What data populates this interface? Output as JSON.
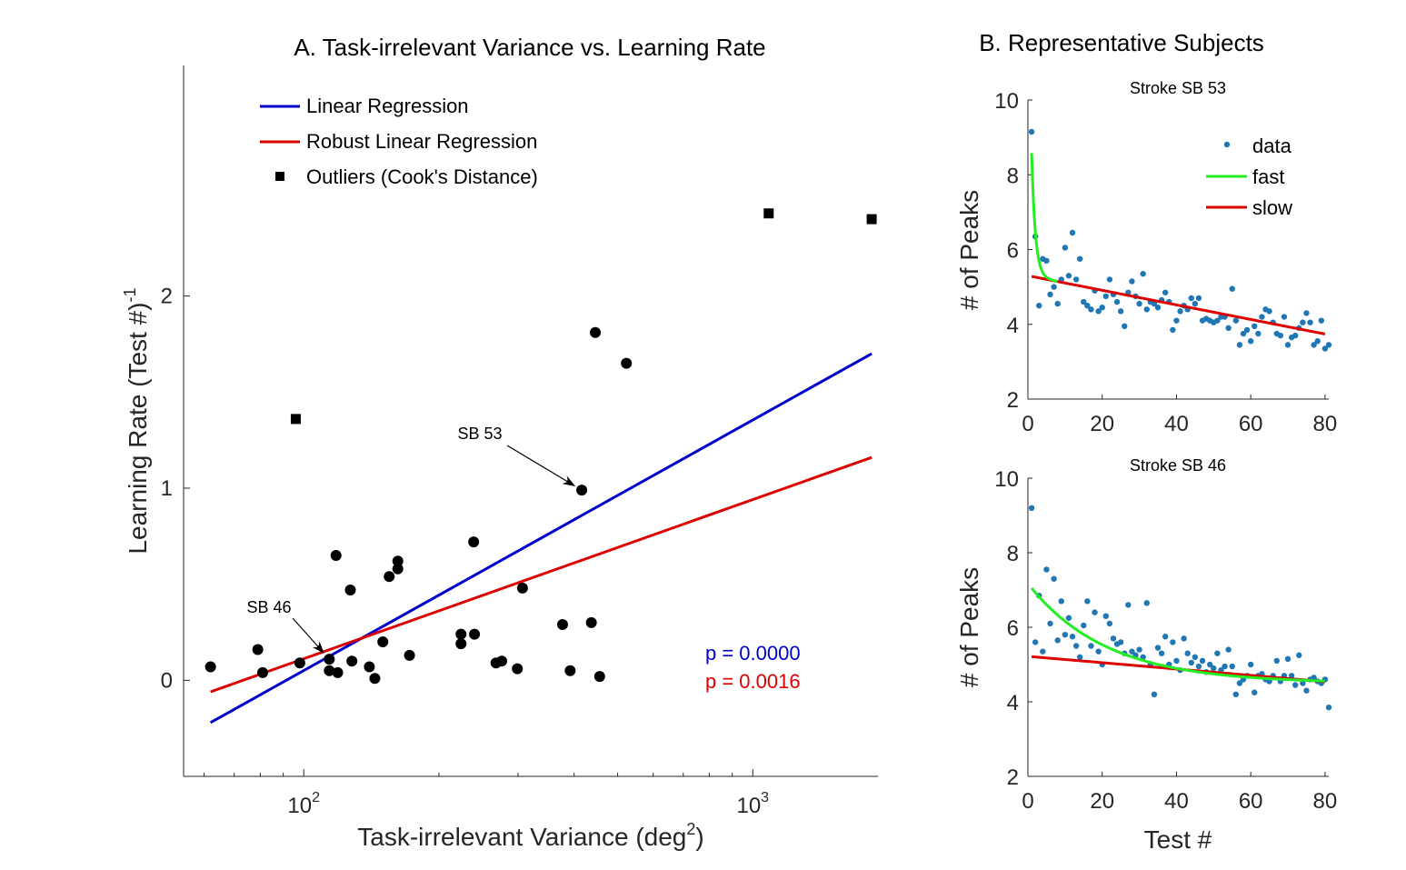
{
  "chart_data": [
    {
      "id": "A",
      "type": "scatter",
      "title": "A. Task-irrelevant Variance vs. Learning Rate",
      "xlabel": "Task-irrelevant Variance (deg",
      "xlabel_sup": "2",
      "xlabel_end": ")",
      "ylabel": "Learning Rate (Test #)",
      "ylabel_sup": "-1",
      "xscale": "log",
      "xlim": [
        54,
        1900
      ],
      "ylim": [
        -0.5,
        3.2
      ],
      "xticks": [
        {
          "value": 100,
          "base": "10",
          "exp": "2"
        },
        {
          "value": 1000,
          "base": "10",
          "exp": "3"
        }
      ],
      "yticks": [
        {
          "value": 0,
          "label": "0"
        },
        {
          "value": 1,
          "label": "1"
        },
        {
          "value": 2,
          "label": "2"
        }
      ],
      "legend": {
        "position": "top-left",
        "entries": [
          {
            "label": "Linear Regression",
            "color": "#0000cc",
            "kind": "line"
          },
          {
            "label": "Robust Linear Regression",
            "color": "#dd0000",
            "kind": "line"
          },
          {
            "label": "Outliers (Cook's Distance)",
            "color": "#000000",
            "kind": "square"
          }
        ]
      },
      "points": [
        {
          "x": 62,
          "y": 0.07
        },
        {
          "x": 79,
          "y": 0.16
        },
        {
          "x": 81,
          "y": 0.04
        },
        {
          "x": 98,
          "y": 0.09
        },
        {
          "x": 114,
          "y": 0.05
        },
        {
          "x": 114,
          "y": 0.11
        },
        {
          "x": 118,
          "y": 0.65
        },
        {
          "x": 119,
          "y": 0.04
        },
        {
          "x": 127,
          "y": 0.47
        },
        {
          "x": 128,
          "y": 0.1
        },
        {
          "x": 140,
          "y": 0.07
        },
        {
          "x": 144,
          "y": 0.01
        },
        {
          "x": 150,
          "y": 0.2
        },
        {
          "x": 155,
          "y": 0.54
        },
        {
          "x": 162,
          "y": 0.58
        },
        {
          "x": 162,
          "y": 0.62
        },
        {
          "x": 172,
          "y": 0.13
        },
        {
          "x": 224,
          "y": 0.24
        },
        {
          "x": 224,
          "y": 0.19
        },
        {
          "x": 239,
          "y": 0.72
        },
        {
          "x": 240,
          "y": 0.24
        },
        {
          "x": 268,
          "y": 0.09
        },
        {
          "x": 276,
          "y": 0.1
        },
        {
          "x": 299,
          "y": 0.06
        },
        {
          "x": 307,
          "y": 0.48
        },
        {
          "x": 377,
          "y": 0.29
        },
        {
          "x": 392,
          "y": 0.05
        },
        {
          "x": 416,
          "y": 0.99
        },
        {
          "x": 437,
          "y": 0.3
        },
        {
          "x": 446,
          "y": 1.81
        },
        {
          "x": 456,
          "y": 0.02
        },
        {
          "x": 523,
          "y": 1.65
        }
      ],
      "outliers": [
        {
          "x": 96,
          "y": 1.36
        },
        {
          "x": 1085,
          "y": 2.43
        },
        {
          "x": 1840,
          "y": 2.4
        }
      ],
      "lines": [
        {
          "name": "Linear Regression",
          "color": "#0000cc",
          "x": [
            62,
            1840
          ],
          "y": [
            -0.22,
            1.7
          ]
        },
        {
          "name": "Robust Linear Regression",
          "color": "#dd0000",
          "x": [
            62,
            1840
          ],
          "y": [
            -0.06,
            1.16
          ]
        }
      ],
      "annotations": [
        {
          "text": "SB 53",
          "target": {
            "x": 416,
            "y": 0.99
          }
        },
        {
          "text": "SB 46",
          "target": {
            "x": 114,
            "y": 0.11
          }
        }
      ],
      "pvalues": [
        {
          "text": "p = 0.0000",
          "color": "#0000cc"
        },
        {
          "text": "p = 0.0016",
          "color": "#dd0000"
        }
      ]
    },
    {
      "id": "B1",
      "type": "scatter",
      "title": "Stroke SB 53",
      "panel_title": "B. Representative Subjects",
      "ylabel": "# of Peaks",
      "xlabel": "",
      "xlim": [
        0,
        81
      ],
      "ylim": [
        2,
        10
      ],
      "xticks": [
        0,
        20,
        40,
        60,
        80
      ],
      "yticks": [
        2,
        4,
        6,
        8,
        10
      ],
      "legend": {
        "position": "top-right",
        "entries": [
          {
            "label": "data",
            "color": "#1f77b4",
            "kind": "dot"
          },
          {
            "label": "fast",
            "color": "#22ee22",
            "kind": "line"
          },
          {
            "label": "slow",
            "color": "#dd0000",
            "kind": "line"
          }
        ]
      },
      "data": [
        9.15,
        6.35,
        4.5,
        5.75,
        5.7,
        4.8,
        5.0,
        4.55,
        5.2,
        6.05,
        5.3,
        6.45,
        5.2,
        5.75,
        4.6,
        4.5,
        4.4,
        4.9,
        4.35,
        4.45,
        4.75,
        5.2,
        4.8,
        4.6,
        4.35,
        3.95,
        4.85,
        5.15,
        4.75,
        4.55,
        5.35,
        4.4,
        4.6,
        4.55,
        4.45,
        4.65,
        4.85,
        4.6,
        3.85,
        4.1,
        4.35,
        4.5,
        4.4,
        4.7,
        4.55,
        4.7,
        4.1,
        4.15,
        4.1,
        4.05,
        4.1,
        4.2,
        4.2,
        3.9,
        4.95,
        4.1,
        3.45,
        3.75,
        3.85,
        3.55,
        3.95,
        3.75,
        4.2,
        4.4,
        4.35,
        4.05,
        3.75,
        3.7,
        4.2,
        3.45,
        3.65,
        3.7,
        3.9,
        4.05,
        4.3,
        4.05,
        3.45,
        3.55,
        4.1,
        3.35,
        3.45
      ],
      "fit_fast": {
        "a": 3.3,
        "tau": 1.0,
        "c": 5.3,
        "b": 0.0195,
        "color": "#22ee22",
        "x_end": 8
      },
      "fit_slow": {
        "intercept": 5.3,
        "slope": -0.0195,
        "color": "#dd0000"
      }
    },
    {
      "id": "B2",
      "type": "scatter",
      "title": "Stroke SB 46",
      "ylabel": "# of Peaks",
      "xlabel": "Test #",
      "xlim": [
        0,
        81
      ],
      "ylim": [
        2,
        10
      ],
      "xticks": [
        0,
        20,
        40,
        60,
        80
      ],
      "yticks": [
        2,
        4,
        6,
        8,
        10
      ],
      "data": [
        9.2,
        5.6,
        6.85,
        5.35,
        7.55,
        6.1,
        7.3,
        5.65,
        6.7,
        5.8,
        6.25,
        5.75,
        5.5,
        5.2,
        6.05,
        6.7,
        5.5,
        6.4,
        5.35,
        5.0,
        6.3,
        6.1,
        5.7,
        5.55,
        5.6,
        5.3,
        6.6,
        5.35,
        5.25,
        5.4,
        5.2,
        6.65,
        5.0,
        4.2,
        5.45,
        5.3,
        5.75,
        5.0,
        5.6,
        5.1,
        4.85,
        5.7,
        5.3,
        5.05,
        5.2,
        4.95,
        5.1,
        4.8,
        5.0,
        4.9,
        5.3,
        4.85,
        4.95,
        5.4,
        4.95,
        4.2,
        4.5,
        4.6,
        4.7,
        5.0,
        4.25,
        4.7,
        4.75,
        4.6,
        4.55,
        4.7,
        5.1,
        4.55,
        4.7,
        5.15,
        4.7,
        4.45,
        5.25,
        4.5,
        4.3,
        4.6,
        4.65,
        4.55,
        4.5,
        4.6,
        3.85
      ],
      "fit_fast": {
        "a": 2.55,
        "tau": 21.0,
        "c": 4.5,
        "color": "#22ee22"
      },
      "fit_slow": {
        "intercept": 5.22,
        "slope": -0.0085,
        "color": "#dd0000"
      }
    }
  ]
}
